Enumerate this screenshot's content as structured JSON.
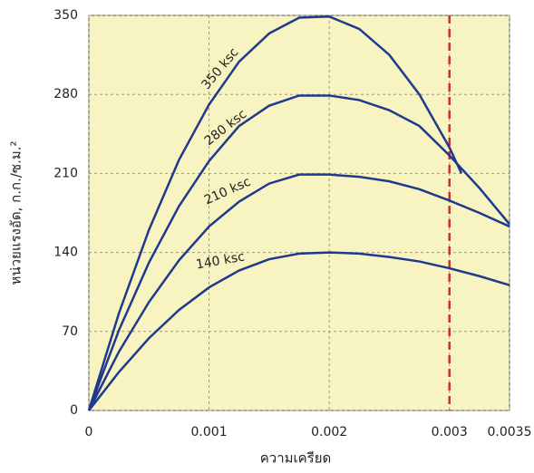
{
  "chart_data": {
    "type": "line",
    "x_label": "ความเครียด",
    "y_label": "หน่วยแรงอัด, ก.ก./ซ.ม.²",
    "xlim": [
      0,
      0.0035
    ],
    "xticks": [
      0,
      0.001,
      0.002,
      0.003,
      0.0035
    ],
    "ylim": [
      0,
      350
    ],
    "yticks": [
      0,
      70,
      140,
      210,
      280,
      350
    ],
    "grid": true,
    "vline": {
      "x": 0.003,
      "color": "#c8322a"
    },
    "series": [
      {
        "name": "350 ksc",
        "color": "#1f3a8c",
        "x": [
          0,
          0.00025,
          0.0005,
          0.00075,
          0.001,
          0.00125,
          0.0015,
          0.00175,
          0.002,
          0.00225,
          0.0025,
          0.00275,
          0.003,
          0.0031
        ],
        "values": [
          0,
          86,
          160,
          222,
          271,
          309,
          334,
          348,
          349,
          338,
          315,
          280,
          233,
          210
        ]
      },
      {
        "name": "280 ksc",
        "color": "#1f3a8c",
        "x": [
          0,
          0.00025,
          0.0005,
          0.00075,
          0.001,
          0.00125,
          0.0015,
          0.00175,
          0.002,
          0.00225,
          0.0025,
          0.00275,
          0.003,
          0.00325,
          0.0035
        ],
        "values": [
          0,
          71,
          131,
          181,
          221,
          252,
          270,
          279,
          279,
          275,
          266,
          252,
          226,
          197,
          165
        ]
      },
      {
        "name": "210 ksc",
        "color": "#1f3a8c",
        "x": [
          0,
          0.00025,
          0.0005,
          0.00075,
          0.001,
          0.00125,
          0.0015,
          0.00175,
          0.002,
          0.00225,
          0.0025,
          0.00275,
          0.003,
          0.00325,
          0.0035
        ],
        "values": [
          0,
          52,
          96,
          133,
          163,
          185,
          201,
          209,
          209,
          207,
          203,
          196,
          186,
          175,
          163
        ]
      },
      {
        "name": "140 ksc",
        "color": "#1f3a8c",
        "x": [
          0,
          0.00025,
          0.0005,
          0.00075,
          0.001,
          0.00125,
          0.0015,
          0.00175,
          0.002,
          0.00225,
          0.0025,
          0.00275,
          0.003,
          0.00325,
          0.0035
        ],
        "values": [
          0,
          34,
          64,
          89,
          109,
          124,
          134,
          139,
          140,
          139,
          136,
          132,
          126,
          119,
          111
        ]
      }
    ]
  }
}
